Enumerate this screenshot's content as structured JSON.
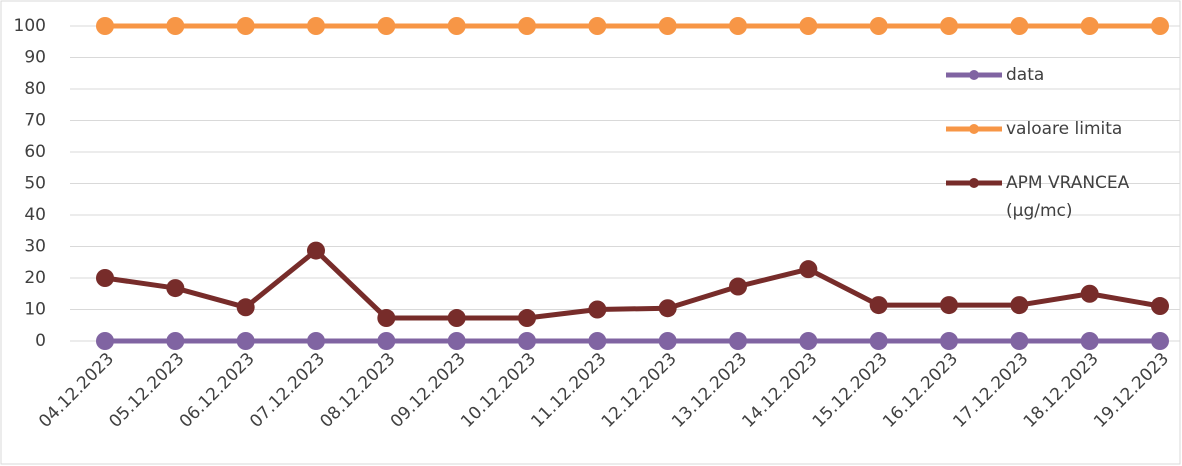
{
  "chart_data": {
    "type": "line",
    "categories": [
      "04.12.2023",
      "05.12.2023",
      "06.12.2023",
      "07.12.2023",
      "08.12.2023",
      "09.12.2023",
      "10.12.2023",
      "11.12.2023",
      "12.12.2023",
      "13.12.2023",
      "14.12.2023",
      "15.12.2023",
      "16.12.2023",
      "17.12.2023",
      "18.12.2023",
      "19.12.2023"
    ],
    "series": [
      {
        "name": "data",
        "color": "#8064a2",
        "values": [
          0,
          0,
          0,
          0,
          0,
          0,
          0,
          0,
          0,
          0,
          0,
          0,
          0,
          0,
          0,
          0
        ]
      },
      {
        "name": "valoare limita",
        "color": "#f79646",
        "values": [
          100,
          100,
          100,
          100,
          100,
          100,
          100,
          100,
          100,
          100,
          100,
          100,
          100,
          100,
          100,
          100
        ]
      },
      {
        "name": "APM VRANCEA (µg/mc)",
        "color": "#772c2a",
        "values": [
          20,
          16.8,
          10.7,
          28.7,
          7.3,
          7.3,
          7.3,
          10,
          10.4,
          17.3,
          22.8,
          11.4,
          11.4,
          11.4,
          15,
          11.1
        ]
      }
    ],
    "ylim": [
      0,
      100
    ],
    "yticks": [
      0,
      10,
      20,
      30,
      40,
      50,
      60,
      70,
      80,
      90,
      100
    ],
    "grid": true,
    "legend": "right"
  }
}
